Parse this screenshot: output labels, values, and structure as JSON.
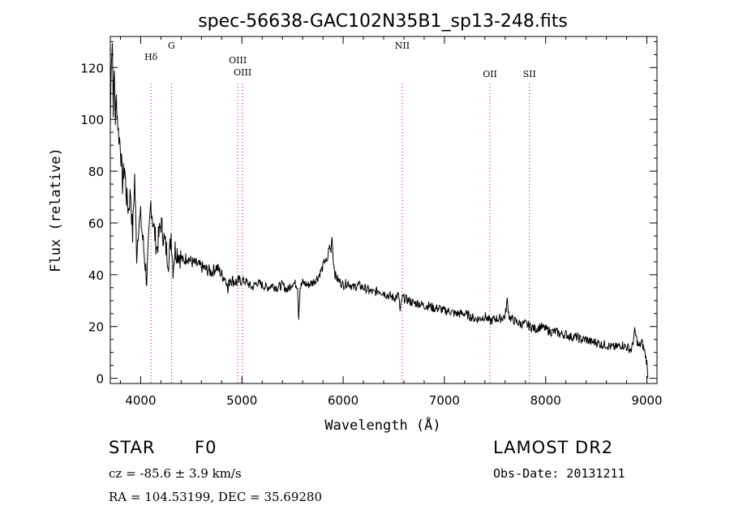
{
  "chart_data": {
    "type": "line",
    "title": "spec-56638-GAC102N35B1_sp13-248.fits",
    "xlabel": "Wavelength (Å)",
    "ylabel": "Flux (relative)",
    "xlim": [
      3700,
      9100
    ],
    "ylim": [
      -2,
      132
    ],
    "xticks": [
      4000,
      5000,
      6000,
      7000,
      8000,
      9000
    ],
    "yticks": [
      0,
      20,
      40,
      60,
      80,
      100,
      120
    ],
    "grid": false,
    "line_color": "#000000",
    "series": [
      {
        "x": [
          3700,
          3710,
          3720,
          3730,
          3740,
          3750,
          3760,
          3780,
          3800,
          3820,
          3840,
          3860,
          3880,
          3900,
          3920,
          3940,
          3960,
          3980,
          4000,
          4030,
          4060,
          4100,
          4130,
          4160,
          4200,
          4240,
          4280,
          4300,
          4320,
          4340,
          4380,
          4420,
          4460,
          4500,
          4550,
          4600,
          4650,
          4700,
          4750,
          4800,
          4850,
          4861,
          4880,
          4900,
          4950,
          5000,
          5050,
          5100,
          5150,
          5200,
          5250,
          5300,
          5350,
          5400,
          5450,
          5500,
          5550,
          5560,
          5575,
          5600,
          5650,
          5700,
          5750,
          5800,
          5820,
          5840,
          5860,
          5880,
          5890,
          5900,
          5920,
          5950,
          6000,
          6050,
          6100,
          6150,
          6200,
          6250,
          6300,
          6350,
          6400,
          6450,
          6500,
          6550,
          6563,
          6580,
          6600,
          6650,
          6700,
          6750,
          6800,
          6850,
          6900,
          6950,
          7000,
          7050,
          7100,
          7150,
          7200,
          7250,
          7300,
          7350,
          7400,
          7450,
          7500,
          7550,
          7600,
          7620,
          7640,
          7660,
          7700,
          7750,
          7800,
          7850,
          7900,
          7950,
          8000,
          8050,
          8100,
          8150,
          8200,
          8250,
          8300,
          8350,
          8400,
          8450,
          8500,
          8550,
          8600,
          8650,
          8700,
          8750,
          8800,
          8850,
          8880,
          8900,
          8920,
          8950,
          8980,
          9000,
          9010
        ],
        "y": [
          98,
          125,
          130,
          105,
          118,
          100,
          108,
          95,
          90,
          75,
          82,
          70,
          65,
          72,
          55,
          78,
          48,
          60,
          62,
          50,
          38,
          68,
          58,
          50,
          60,
          52,
          45,
          56,
          43,
          50,
          48,
          45,
          47,
          45,
          44,
          43,
          42,
          41,
          43,
          40,
          38,
          33,
          39,
          38,
          37,
          38,
          37,
          35,
          37,
          36,
          35,
          36,
          35,
          36,
          34,
          37,
          36,
          24,
          35,
          37,
          36,
          37,
          39,
          43,
          46,
          44,
          51,
          49,
          56,
          47,
          40,
          38,
          36,
          37,
          35,
          36,
          35,
          34,
          33,
          34,
          33,
          32,
          31,
          32,
          25,
          31,
          31,
          30,
          29,
          29,
          28,
          28,
          27,
          27,
          26,
          26,
          25,
          25,
          25,
          24,
          23,
          23,
          24,
          22,
          23,
          23,
          24,
          30,
          24,
          23,
          22,
          21,
          21,
          20,
          19,
          20,
          19,
          18,
          18,
          17,
          17,
          16,
          16,
          15,
          15,
          14,
          14,
          13,
          13,
          12,
          12,
          13,
          12,
          11,
          18,
          15,
          12,
          14,
          10,
          6,
          0
        ]
      }
    ],
    "line_markers": [
      {
        "label": "Hδ",
        "x": 4102
      },
      {
        "label": "G",
        "x": 4304
      },
      {
        "label": "OIII",
        "x": 4959
      },
      {
        "label": "OIII",
        "x": 5007
      },
      {
        "label": "NII",
        "x": 6584
      },
      {
        "label": "OII",
        "x": 7450
      },
      {
        "label": "SII",
        "x": 7840
      }
    ]
  },
  "info": {
    "object_class": "STAR",
    "subclass": "F0",
    "survey": "LAMOST DR2",
    "cz": "cz = -85.6 ± 3.9 km/s",
    "obs_date": "Obs-Date: 20131211",
    "coords": "RA = 104.53199, DEC =  35.69280"
  }
}
